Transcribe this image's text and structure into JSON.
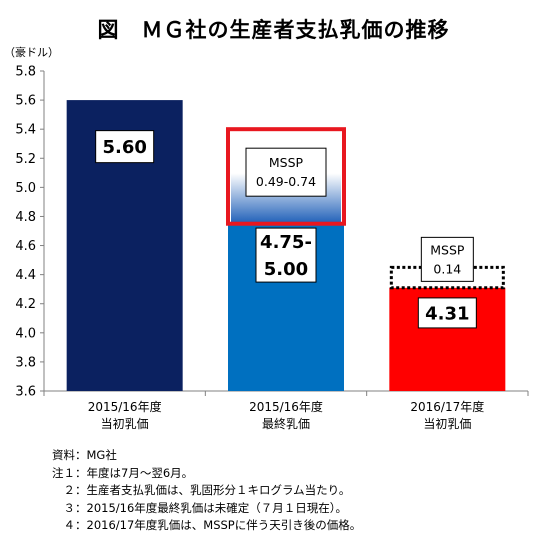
{
  "title": "図　ＭＧ社の生産者支払乳価の推移",
  "unit_label": "（豪ドル）",
  "chart_data": {
    "type": "bar",
    "categories": [
      "2015/16年度",
      "2015/16年度",
      "2016/17年度"
    ],
    "category_sublabels": [
      "当初乳価",
      "最終乳価",
      "当初乳価"
    ],
    "values": [
      5.6,
      4.75,
      4.31
    ],
    "value_labels": [
      "5.60",
      "4.75-\n5.00",
      "4.31"
    ],
    "ranges": [
      null,
      [
        4.75,
        5.0
      ],
      null
    ],
    "colors": [
      "#0b2160",
      "#0070c0",
      "#ff0000"
    ],
    "ylim": [
      3.6,
      5.8
    ],
    "yticks": [
      "3.6",
      "3.8",
      "4.0",
      "4.2",
      "4.4",
      "4.6",
      "4.8",
      "5.0",
      "5.2",
      "5.4",
      "5.6",
      "5.8"
    ],
    "annotations": [
      {
        "bar": 1,
        "text_line1": "MSSP",
        "text_line2": "0.49-0.74",
        "range": [
          4.75,
          5.4
        ],
        "border": "solid-red"
      },
      {
        "bar": 2,
        "text_line1": "MSSP",
        "text_line2": "0.14",
        "range": [
          4.31,
          4.45
        ],
        "border": "dotted-black"
      }
    ],
    "grid": false
  },
  "notes": [
    "資料：MG社",
    "注１：年度は7月～翌6月。",
    "　２：生産者支払乳価は、乳固形分１キログラム当たり。",
    "　３：2015/16年度最終乳価は未確定（７月１日現在）。",
    "　４：2016/17年度乳価は、MSSPに伴う天引き後の価格。"
  ]
}
